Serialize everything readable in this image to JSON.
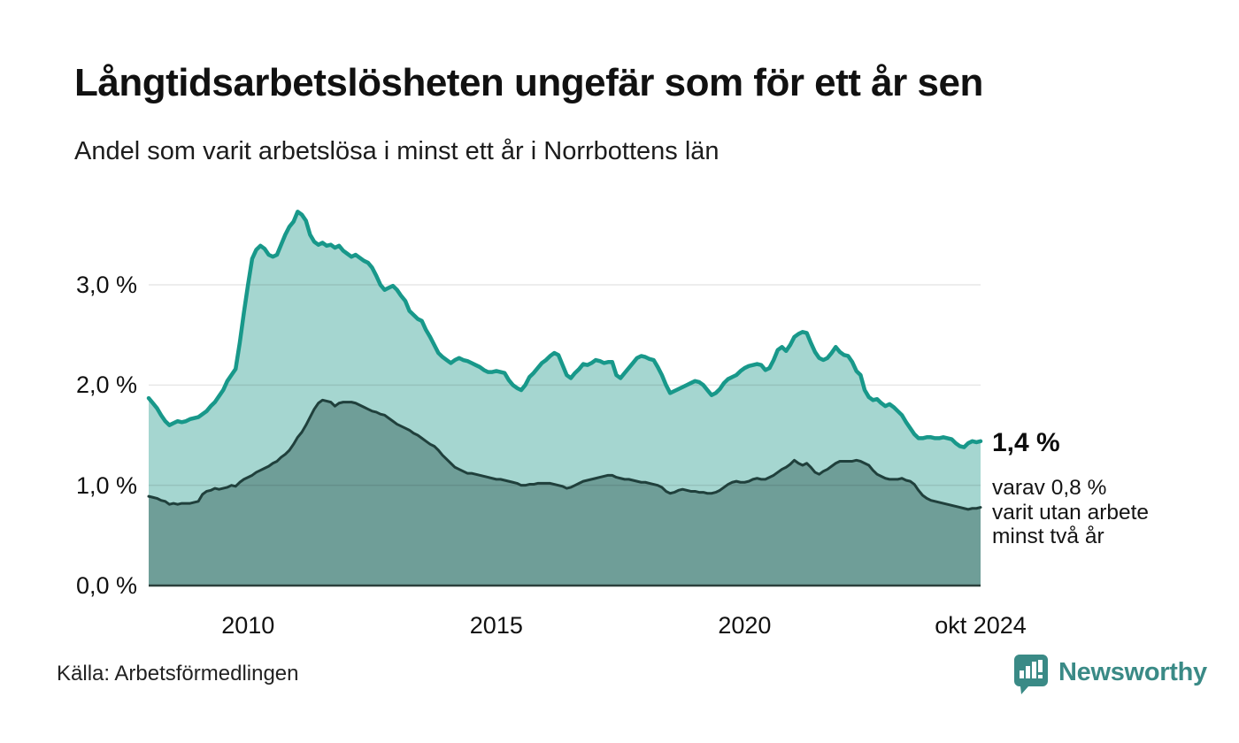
{
  "header": {
    "title": "Långtidsarbetslösheten ungefär som för ett år sen",
    "subtitle": "Andel som varit arbetslösa i minst ett år i Norrbottens län"
  },
  "annotation": {
    "value_label": "1,4 %",
    "lines": [
      "varav 0,8 %",
      "varit utan arbete",
      "minst två år"
    ]
  },
  "source": {
    "label": "Källa: Arbetsförmedlingen"
  },
  "logo": {
    "text": "Newsworthy",
    "icon": "newsworthy-bubble-chart-icon",
    "color": "#3a8a86"
  },
  "colors": {
    "background": "#ffffff",
    "grid": "rgba(20,20,20,0.10)",
    "axis_line": "#2b403c",
    "text": "#111111"
  },
  "chart_data": {
    "type": "area",
    "title": "Långtidsarbetslösheten ungefär som för ett år sen",
    "subtitle": "Andel som varit arbetslösa i minst ett år i Norrbottens län",
    "unit": "%",
    "frequency": "monthly",
    "x_start": "2008-01",
    "x_end": "2024-10",
    "ylim": [
      0,
      3.9
    ],
    "grid": "horizontal",
    "legend_position": "none",
    "y_ticks": [
      {
        "value": 3.0,
        "label": "3,0 %"
      },
      {
        "value": 2.0,
        "label": "2,0 %"
      },
      {
        "value": 1.0,
        "label": "1,0 %"
      },
      {
        "value": 0.0,
        "label": "0,0 %"
      }
    ],
    "x_ticks": [
      {
        "label": "2010",
        "month_index": 24
      },
      {
        "label": "2015",
        "month_index": 84
      },
      {
        "label": "2020",
        "month_index": 144
      },
      {
        "label": "okt 2024",
        "month_index": 201
      }
    ],
    "series": [
      {
        "name": "Arbetslösa minst ett år",
        "end_label": "1,4 %",
        "color_line": "#18988a",
        "color_fill": "#a5d6d0",
        "values": [
          1.87,
          1.82,
          1.77,
          1.7,
          1.64,
          1.6,
          1.62,
          1.64,
          1.63,
          1.64,
          1.66,
          1.67,
          1.68,
          1.71,
          1.74,
          1.79,
          1.83,
          1.89,
          1.95,
          2.04,
          2.1,
          2.16,
          2.42,
          2.72,
          3.0,
          3.26,
          3.35,
          3.39,
          3.36,
          3.3,
          3.28,
          3.3,
          3.4,
          3.5,
          3.58,
          3.63,
          3.73,
          3.7,
          3.64,
          3.5,
          3.43,
          3.4,
          3.42,
          3.39,
          3.4,
          3.37,
          3.39,
          3.34,
          3.31,
          3.28,
          3.3,
          3.27,
          3.24,
          3.22,
          3.17,
          3.09,
          3.0,
          2.95,
          2.97,
          2.99,
          2.95,
          2.89,
          2.84,
          2.74,
          2.7,
          2.66,
          2.64,
          2.55,
          2.48,
          2.4,
          2.32,
          2.28,
          2.25,
          2.22,
          2.25,
          2.27,
          2.25,
          2.24,
          2.22,
          2.2,
          2.18,
          2.15,
          2.13,
          2.13,
          2.14,
          2.13,
          2.12,
          2.05,
          2.0,
          1.97,
          1.95,
          2.0,
          2.08,
          2.12,
          2.17,
          2.22,
          2.25,
          2.29,
          2.32,
          2.3,
          2.2,
          2.1,
          2.07,
          2.12,
          2.16,
          2.21,
          2.2,
          2.22,
          2.25,
          2.24,
          2.22,
          2.23,
          2.23,
          2.1,
          2.07,
          2.12,
          2.17,
          2.22,
          2.27,
          2.29,
          2.28,
          2.26,
          2.25,
          2.18,
          2.1,
          2.0,
          1.92,
          1.94,
          1.96,
          1.98,
          2.0,
          2.02,
          2.04,
          2.03,
          2.0,
          1.95,
          1.9,
          1.92,
          1.96,
          2.02,
          2.06,
          2.08,
          2.1,
          2.14,
          2.17,
          2.19,
          2.2,
          2.21,
          2.2,
          2.15,
          2.17,
          2.25,
          2.35,
          2.38,
          2.34,
          2.4,
          2.48,
          2.51,
          2.53,
          2.52,
          2.42,
          2.33,
          2.27,
          2.25,
          2.27,
          2.32,
          2.38,
          2.33,
          2.3,
          2.29,
          2.23,
          2.14,
          2.1,
          1.95,
          1.88,
          1.85,
          1.86,
          1.82,
          1.79,
          1.81,
          1.78,
          1.74,
          1.7,
          1.63,
          1.57,
          1.51,
          1.47,
          1.47,
          1.48,
          1.48,
          1.47,
          1.47,
          1.48,
          1.47,
          1.46,
          1.42,
          1.39,
          1.38,
          1.42,
          1.44,
          1.43,
          1.44
        ]
      },
      {
        "name": "Arbetslösa minst två år",
        "end_label": "0,8 %",
        "color_line": "#20403c",
        "color_fill": "#6f9e98",
        "values": [
          0.89,
          0.88,
          0.87,
          0.85,
          0.84,
          0.81,
          0.82,
          0.81,
          0.82,
          0.82,
          0.82,
          0.83,
          0.84,
          0.91,
          0.94,
          0.95,
          0.97,
          0.96,
          0.97,
          0.98,
          1.0,
          0.99,
          1.03,
          1.06,
          1.08,
          1.1,
          1.13,
          1.15,
          1.17,
          1.19,
          1.22,
          1.24,
          1.28,
          1.31,
          1.35,
          1.41,
          1.48,
          1.53,
          1.6,
          1.68,
          1.76,
          1.82,
          1.85,
          1.84,
          1.83,
          1.79,
          1.82,
          1.83,
          1.83,
          1.83,
          1.82,
          1.8,
          1.78,
          1.76,
          1.74,
          1.73,
          1.71,
          1.7,
          1.67,
          1.64,
          1.61,
          1.59,
          1.57,
          1.55,
          1.52,
          1.5,
          1.47,
          1.44,
          1.41,
          1.39,
          1.35,
          1.3,
          1.26,
          1.22,
          1.18,
          1.16,
          1.14,
          1.12,
          1.12,
          1.11,
          1.1,
          1.09,
          1.08,
          1.07,
          1.06,
          1.06,
          1.05,
          1.04,
          1.03,
          1.02,
          1.0,
          1.0,
          1.01,
          1.01,
          1.02,
          1.02,
          1.02,
          1.02,
          1.01,
          1.0,
          0.99,
          0.97,
          0.98,
          1.0,
          1.02,
          1.04,
          1.05,
          1.06,
          1.07,
          1.08,
          1.09,
          1.1,
          1.1,
          1.08,
          1.07,
          1.06,
          1.06,
          1.05,
          1.04,
          1.03,
          1.03,
          1.02,
          1.01,
          1.0,
          0.98,
          0.94,
          0.92,
          0.93,
          0.95,
          0.96,
          0.95,
          0.94,
          0.94,
          0.93,
          0.93,
          0.92,
          0.92,
          0.93,
          0.95,
          0.98,
          1.01,
          1.03,
          1.04,
          1.03,
          1.03,
          1.04,
          1.06,
          1.07,
          1.06,
          1.06,
          1.08,
          1.1,
          1.13,
          1.16,
          1.18,
          1.21,
          1.25,
          1.22,
          1.2,
          1.22,
          1.18,
          1.13,
          1.11,
          1.14,
          1.16,
          1.19,
          1.22,
          1.24,
          1.24,
          1.24,
          1.24,
          1.25,
          1.24,
          1.22,
          1.2,
          1.15,
          1.11,
          1.09,
          1.07,
          1.06,
          1.06,
          1.06,
          1.07,
          1.05,
          1.04,
          1.01,
          0.95,
          0.9,
          0.87,
          0.85,
          0.84,
          0.83,
          0.82,
          0.81,
          0.8,
          0.79,
          0.78,
          0.77,
          0.76,
          0.77,
          0.77,
          0.78
        ]
      }
    ]
  }
}
